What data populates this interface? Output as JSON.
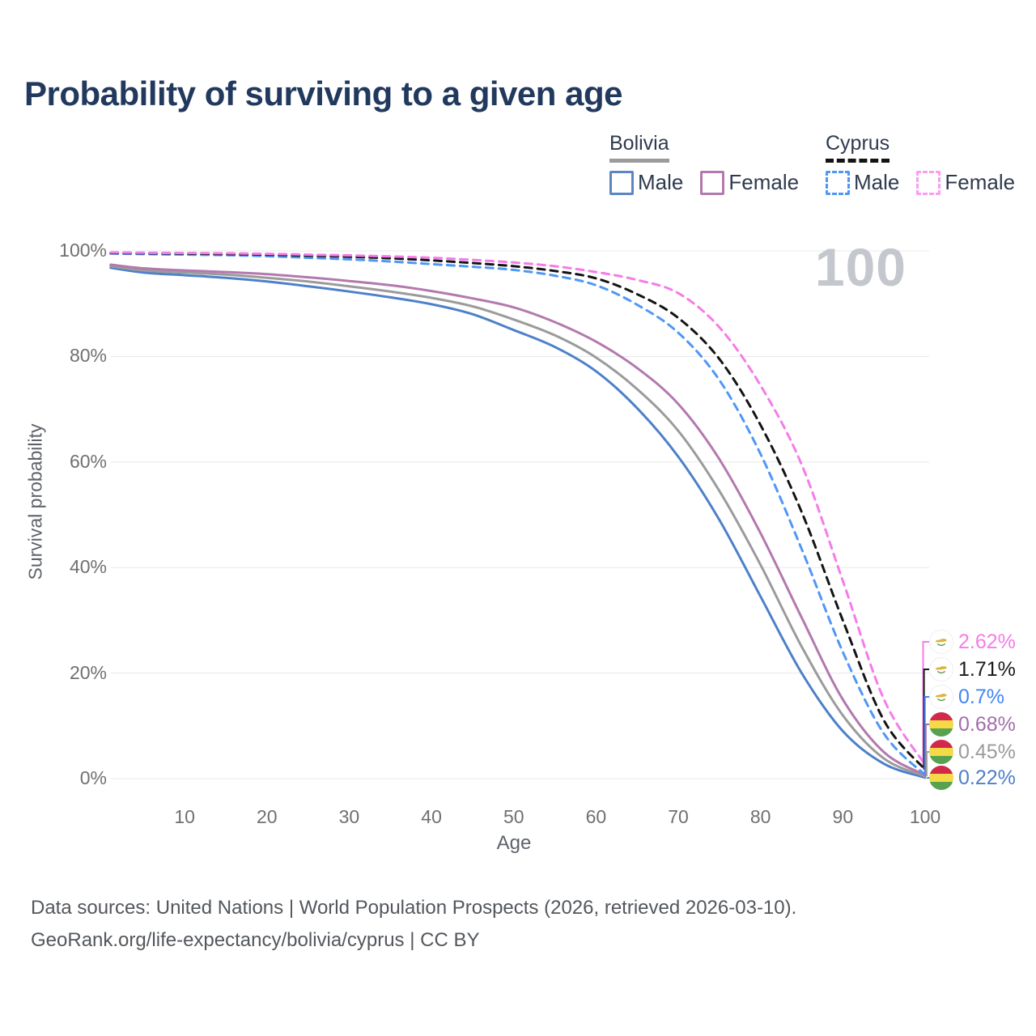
{
  "title": "Probability of surviving to a given age",
  "watermark": "100",
  "legend": {
    "bolivia": {
      "label": "Bolivia",
      "underline_color": "#9b9b9b",
      "items": [
        {
          "label": "Male",
          "color": "#5b86c3",
          "style": "solid"
        },
        {
          "label": "Female",
          "color": "#b379ae",
          "style": "solid"
        }
      ]
    },
    "cyprus": {
      "label": "Cyprus",
      "underline_color": "#141414",
      "items": [
        {
          "label": "Male",
          "color": "#4f97f7",
          "style": "dashed"
        },
        {
          "label": "Female",
          "color": "#fb9cf3",
          "style": "dashed"
        }
      ]
    }
  },
  "end_labels": [
    {
      "series": "Cyprus Female",
      "value": "2.62%",
      "color": "#f57ce8",
      "flag": "cyprus"
    },
    {
      "series": "Cyprus",
      "value": "1.71%",
      "color": "#1a1a1a",
      "flag": "cyprus"
    },
    {
      "series": "Cyprus Male",
      "value": "0.7%",
      "color": "#4285f4",
      "flag": "cyprus"
    },
    {
      "series": "Bolivia Female",
      "value": "0.68%",
      "color": "#a46cae",
      "flag": "bolivia"
    },
    {
      "series": "Bolivia",
      "value": "0.45%",
      "color": "#9b9b9b",
      "flag": "bolivia"
    },
    {
      "series": "Bolivia Male",
      "value": "0.22%",
      "color": "#4d80c9",
      "flag": "bolivia"
    }
  ],
  "footer": {
    "line1": "Data sources: United Nations | World Population Prospects (2026, retrieved 2026-03-10).",
    "line2": "GeoRank.org/life-expectancy/bolivia/cyprus | CC BY"
  },
  "chart_data": {
    "type": "line",
    "title": "Probability of surviving to a given age",
    "xlabel": "Age",
    "ylabel": "Survival probability",
    "xlim": [
      0,
      100
    ],
    "ylim": [
      0,
      100
    ],
    "grid": "horizontal",
    "legend_position": "top-right",
    "x_ticks": [
      10,
      20,
      30,
      40,
      50,
      60,
      70,
      80,
      90,
      100
    ],
    "y_ticks": [
      0,
      20,
      40,
      60,
      80,
      100
    ],
    "y_tick_labels": [
      "0%",
      "20%",
      "40%",
      "60%",
      "80%",
      "100%"
    ],
    "x": [
      1,
      5,
      10,
      15,
      20,
      25,
      30,
      35,
      40,
      45,
      50,
      55,
      60,
      65,
      70,
      75,
      80,
      85,
      90,
      95,
      100
    ],
    "series": [
      {
        "name": "Bolivia Male",
        "country": "Bolivia",
        "group": "Male",
        "line": "solid",
        "color": "#4d80c9",
        "values": [
          96.8,
          95.9,
          95.4,
          94.9,
          94.2,
          93.3,
          92.3,
          91.2,
          89.9,
          88.0,
          85.0,
          81.8,
          77.2,
          70.2,
          61.0,
          49.0,
          34.5,
          20.0,
          9.0,
          2.8,
          0.22
        ]
      },
      {
        "name": "Bolivia",
        "country": "Bolivia",
        "group": "Both sexes",
        "line": "solid",
        "color": "#9b9b9b",
        "values": [
          97.1,
          96.3,
          95.9,
          95.5,
          94.9,
          94.2,
          93.3,
          92.3,
          91.1,
          89.5,
          87.0,
          84.0,
          79.8,
          73.8,
          65.9,
          54.5,
          40.5,
          25.0,
          12.0,
          3.8,
          0.45
        ]
      },
      {
        "name": "Bolivia Female",
        "country": "Bolivia",
        "group": "Female",
        "line": "solid",
        "color": "#b379ae",
        "values": [
          97.4,
          96.7,
          96.3,
          96.0,
          95.6,
          95.0,
          94.3,
          93.5,
          92.4,
          91.0,
          89.3,
          86.5,
          82.8,
          77.8,
          71.0,
          60.5,
          46.5,
          30.5,
          15.0,
          5.0,
          0.68
        ]
      },
      {
        "name": "Cyprus Male",
        "country": "Cyprus",
        "group": "Male",
        "line": "dashed",
        "color": "#4f97f7",
        "values": [
          99.5,
          99.4,
          99.3,
          99.2,
          99.0,
          98.7,
          98.4,
          98.0,
          97.5,
          97.0,
          96.4,
          95.3,
          93.5,
          89.8,
          84.5,
          75.5,
          61.5,
          43.5,
          24.0,
          8.5,
          0.7
        ]
      },
      {
        "name": "Cyprus",
        "country": "Cyprus",
        "group": "Both sexes",
        "line": "dashed",
        "color": "#141414",
        "values": [
          99.6,
          99.55,
          99.5,
          99.4,
          99.3,
          99.1,
          98.9,
          98.6,
          98.2,
          97.7,
          97.1,
          96.2,
          94.8,
          91.8,
          87.3,
          79.5,
          67.0,
          50.5,
          30.0,
          11.0,
          1.71
        ]
      },
      {
        "name": "Cyprus Female",
        "country": "Cyprus",
        "group": "Female",
        "line": "dashed",
        "color": "#f57ce8",
        "values": [
          99.7,
          99.65,
          99.6,
          99.55,
          99.45,
          99.3,
          99.15,
          98.95,
          98.7,
          98.3,
          97.8,
          97.1,
          96.0,
          94.5,
          92.0,
          85.5,
          74.5,
          59.5,
          37.5,
          15.0,
          2.62
        ]
      }
    ]
  }
}
